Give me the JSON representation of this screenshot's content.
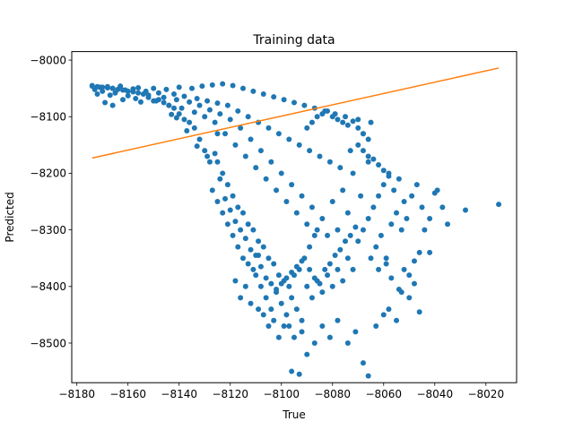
{
  "chart_data": {
    "type": "scatter",
    "title": "Training data",
    "xlabel": "True",
    "ylabel": "Predicted",
    "xlim": [
      -8182,
      -8008
    ],
    "ylim": [
      -8570,
      -7985
    ],
    "x_ticks": [
      -8180,
      -8160,
      -8140,
      -8120,
      -8100,
      -8080,
      -8060,
      -8040,
      -8020
    ],
    "y_ticks": [
      -8000,
      -8100,
      -8200,
      -8300,
      -8400,
      -8500
    ],
    "x_tick_labels": [
      "−8180",
      "−8160",
      "−8140",
      "−8120",
      "−8100",
      "−8080",
      "−8060",
      "−8040",
      "−8020"
    ],
    "y_tick_labels": [
      "−8000",
      "−8100",
      "−8200",
      "−8300",
      "−8400",
      "−8500"
    ],
    "grid": false,
    "series": [
      {
        "type": "scatter",
        "color": "#1f77b4",
        "points": [
          [
            -8174,
            -8045
          ],
          [
            -8173,
            -8052
          ],
          [
            -8172,
            -8060
          ],
          [
            -8171,
            -8048
          ],
          [
            -8170,
            -8055
          ],
          [
            -8168,
            -8047
          ],
          [
            -8167,
            -8062
          ],
          [
            -8166,
            -8050
          ],
          [
            -8165,
            -8058
          ],
          [
            -8163,
            -8046
          ],
          [
            -8162,
            -8070
          ],
          [
            -8161,
            -8053
          ],
          [
            -8160,
            -8063
          ],
          [
            -8158,
            -8051
          ],
          [
            -8157,
            -8068
          ],
          [
            -8156,
            -8049
          ],
          [
            -8155,
            -8074
          ],
          [
            -8153,
            -8055
          ],
          [
            -8152,
            -8062
          ],
          [
            -8150,
            -8050
          ],
          [
            -8149,
            -8072
          ],
          [
            -8148,
            -8058
          ],
          [
            -8146,
            -8066
          ],
          [
            -8145,
            -8052
          ],
          [
            -8144,
            -8080
          ],
          [
            -8142,
            -8060
          ],
          [
            -8141,
            -8070
          ],
          [
            -8140,
            -8048
          ],
          [
            -8139,
            -8085
          ],
          [
            -8138,
            -8064
          ],
          [
            -8136,
            -8074
          ],
          [
            -8135,
            -8050
          ],
          [
            -8134,
            -8092
          ],
          [
            -8133,
            -8068
          ],
          [
            -8132,
            -8080
          ],
          [
            -8131,
            -8046
          ],
          [
            -8130,
            -8100
          ],
          [
            -8129,
            -8072
          ],
          [
            -8128,
            -8088
          ],
          [
            -8127,
            -8044
          ],
          [
            -8126,
            -8110
          ],
          [
            -8125,
            -8076
          ],
          [
            -8124,
            -8095
          ],
          [
            -8123,
            -8042
          ],
          [
            -8122,
            -8130
          ],
          [
            -8121,
            -8080
          ],
          [
            -8120,
            -8105
          ],
          [
            -8119,
            -8045
          ],
          [
            -8118,
            -8150
          ],
          [
            -8117,
            -8090
          ],
          [
            -8116,
            -8120
          ],
          [
            -8115,
            -8050
          ],
          [
            -8114,
            -8170
          ],
          [
            -8113,
            -8100
          ],
          [
            -8112,
            -8140
          ],
          [
            -8111,
            -8055
          ],
          [
            -8110,
            -8190
          ],
          [
            -8109,
            -8110
          ],
          [
            -8108,
            -8160
          ],
          [
            -8107,
            -8060
          ],
          [
            -8106,
            -8210
          ],
          [
            -8105,
            -8120
          ],
          [
            -8104,
            -8180
          ],
          [
            -8103,
            -8065
          ],
          [
            -8102,
            -8230
          ],
          [
            -8101,
            -8130
          ],
          [
            -8100,
            -8200
          ],
          [
            -8099,
            -8070
          ],
          [
            -8098,
            -8250
          ],
          [
            -8097,
            -8140
          ],
          [
            -8096,
            -8220
          ],
          [
            -8095,
            -8075
          ],
          [
            -8094,
            -8270
          ],
          [
            -8093,
            -8150
          ],
          [
            -8092,
            -8240
          ],
          [
            -8091,
            -8080
          ],
          [
            -8090,
            -8290
          ],
          [
            -8089,
            -8160
          ],
          [
            -8088,
            -8260
          ],
          [
            -8087,
            -8085
          ],
          [
            -8086,
            -8300
          ],
          [
            -8085,
            -8170
          ],
          [
            -8084,
            -8280
          ],
          [
            -8083,
            -8090
          ],
          [
            -8082,
            -8310
          ],
          [
            -8081,
            -8180
          ],
          [
            -8080,
            -8250
          ],
          [
            -8079,
            -8095
          ],
          [
            -8078,
            -8300
          ],
          [
            -8077,
            -8190
          ],
          [
            -8076,
            -8230
          ],
          [
            -8075,
            -8100
          ],
          [
            -8074,
            -8270
          ],
          [
            -8073,
            -8160
          ],
          [
            -8072,
            -8200
          ],
          [
            -8070,
            -8105
          ],
          [
            -8069,
            -8240
          ],
          [
            -8068,
            -8130
          ],
          [
            -8066,
            -8180
          ],
          [
            -8065,
            -8110
          ],
          [
            -8125,
            -8180
          ],
          [
            -8123,
            -8200
          ],
          [
            -8121,
            -8220
          ],
          [
            -8119,
            -8240
          ],
          [
            -8117,
            -8260
          ],
          [
            -8115,
            -8270
          ],
          [
            -8113,
            -8290
          ],
          [
            -8111,
            -8300
          ],
          [
            -8109,
            -8320
          ],
          [
            -8107,
            -8330
          ],
          [
            -8105,
            -8350
          ],
          [
            -8103,
            -8360
          ],
          [
            -8101,
            -8380
          ],
          [
            -8099,
            -8390
          ],
          [
            -8097,
            -8400
          ],
          [
            -8095,
            -8380
          ],
          [
            -8093,
            -8370
          ],
          [
            -8091,
            -8350
          ],
          [
            -8089,
            -8330
          ],
          [
            -8087,
            -8310
          ],
          [
            -8110,
            -8380
          ],
          [
            -8108,
            -8400
          ],
          [
            -8106,
            -8420
          ],
          [
            -8104,
            -8440
          ],
          [
            -8102,
            -8410
          ],
          [
            -8100,
            -8430
          ],
          [
            -8098,
            -8450
          ],
          [
            -8096,
            -8420
          ],
          [
            -8094,
            -8440
          ],
          [
            -8092,
            -8460
          ],
          [
            -8090,
            -8400
          ],
          [
            -8088,
            -8420
          ],
          [
            -8086,
            -8390
          ],
          [
            -8084,
            -8410
          ],
          [
            -8082,
            -8380
          ],
          [
            -8080,
            -8400
          ],
          [
            -8078,
            -8370
          ],
          [
            -8076,
            -8390
          ],
          [
            -8074,
            -8350
          ],
          [
            -8072,
            -8370
          ],
          [
            -8115,
            -8350
          ],
          [
            -8113,
            -8360
          ],
          [
            -8111,
            -8370
          ],
          [
            -8109,
            -8345
          ],
          [
            -8117,
            -8330
          ],
          [
            -8119,
            -8310
          ],
          [
            -8121,
            -8290
          ],
          [
            -8123,
            -8270
          ],
          [
            -8125,
            -8250
          ],
          [
            -8127,
            -8230
          ],
          [
            -8070,
            -8320
          ],
          [
            -8068,
            -8300
          ],
          [
            -8066,
            -8280
          ],
          [
            -8064,
            -8260
          ],
          [
            -8062,
            -8240
          ],
          [
            -8060,
            -8220
          ],
          [
            -8058,
            -8200
          ],
          [
            -8056,
            -8230
          ],
          [
            -8054,
            -8210
          ],
          [
            -8052,
            -8250
          ],
          [
            -8063,
            -8330
          ],
          [
            -8061,
            -8310
          ],
          [
            -8059,
            -8350
          ],
          [
            -8057,
            -8290
          ],
          [
            -8055,
            -8270
          ],
          [
            -8053,
            -8300
          ],
          [
            -8051,
            -8280
          ],
          [
            -8049,
            -8240
          ],
          [
            -8047,
            -8220
          ],
          [
            -8045,
            -8260
          ],
          [
            -8097,
            -8470
          ],
          [
            -8095,
            -8490
          ],
          [
            -8092,
            -8480
          ],
          [
            -8096,
            -8550
          ],
          [
            -8093,
            -8555
          ],
          [
            -8090,
            -8520
          ],
          [
            -8087,
            -8500
          ],
          [
            -8084,
            -8470
          ],
          [
            -8081,
            -8490
          ],
          [
            -8078,
            -8460
          ],
          [
            -8074,
            -8500
          ],
          [
            -8071,
            -8480
          ],
          [
            -8068,
            -8535
          ],
          [
            -8066,
            -8558
          ],
          [
            -8063,
            -8470
          ],
          [
            -8060,
            -8450
          ],
          [
            -8058,
            -8440
          ],
          [
            -8055,
            -8460
          ],
          [
            -8053,
            -8410
          ],
          [
            -8050,
            -8420
          ],
          [
            -8105,
            -8470
          ],
          [
            -8103,
            -8460
          ],
          [
            -8101,
            -8490
          ],
          [
            -8099,
            -8470
          ],
          [
            -8107,
            -8450
          ],
          [
            -8109,
            -8440
          ],
          [
            -8112,
            -8430
          ],
          [
            -8114,
            -8400
          ],
          [
            -8116,
            -8420
          ],
          [
            -8118,
            -8390
          ],
          [
            -8048,
            -8355
          ],
          [
            -8046,
            -8340
          ],
          [
            -8050,
            -8380
          ],
          [
            -8052,
            -8370
          ],
          [
            -8044,
            -8300
          ],
          [
            -8042,
            -8280
          ],
          [
            -8040,
            -8235
          ],
          [
            -8039,
            -8230
          ],
          [
            -8037,
            -8260
          ],
          [
            -8035,
            -8290
          ],
          [
            -8028,
            -8265
          ],
          [
            -8015,
            -8255
          ],
          [
            -8046,
            -8445
          ],
          [
            -8042,
            -8340
          ],
          [
            -8048,
            -8395
          ],
          [
            -8054,
            -8405
          ],
          [
            -8057,
            -8385
          ],
          [
            -8059,
            -8360
          ],
          [
            -8062,
            -8370
          ],
          [
            -8065,
            -8350
          ],
          [
            -8125,
            -8130
          ],
          [
            -8130,
            -8160
          ],
          [
            -8128,
            -8180
          ],
          [
            -8126,
            -8165
          ],
          [
            -8132,
            -8140
          ],
          [
            -8134,
            -8120
          ],
          [
            -8136,
            -8110
          ],
          [
            -8138,
            -8105
          ],
          [
            -8140,
            -8095
          ],
          [
            -8142,
            -8085
          ],
          [
            -8144,
            -8080
          ],
          [
            -8146,
            -8075
          ],
          [
            -8148,
            -8070
          ],
          [
            -8150,
            -8072
          ],
          [
            -8152,
            -8066
          ],
          [
            -8154,
            -8060
          ],
          [
            -8156,
            -8058
          ],
          [
            -8158,
            -8056
          ],
          [
            -8160,
            -8055
          ],
          [
            -8162,
            -8053
          ],
          [
            -8164,
            -8052
          ],
          [
            -8166,
            -8050
          ],
          [
            -8168,
            -8049
          ],
          [
            -8170,
            -8048
          ],
          [
            -8172,
            -8047
          ],
          [
            -8174,
            -8046
          ],
          [
            -8169,
            -8075
          ],
          [
            -8166,
            -8080
          ],
          [
            -8143,
            -8096
          ],
          [
            -8141,
            -8102
          ],
          [
            -8137,
            -8125
          ],
          [
            -8133,
            -8152
          ],
          [
            -8129,
            -8170
          ],
          [
            -8124,
            -8210
          ],
          [
            -8122,
            -8245
          ],
          [
            -8120,
            -8265
          ],
          [
            -8118,
            -8285
          ],
          [
            -8116,
            -8300
          ],
          [
            -8114,
            -8315
          ],
          [
            -8112,
            -8335
          ],
          [
            -8110,
            -8345
          ],
          [
            -8108,
            -8365
          ],
          [
            -8106,
            -8385
          ],
          [
            -8104,
            -8395
          ],
          [
            -8102,
            -8405
          ],
          [
            -8100,
            -8395
          ],
          [
            -8098,
            -8385
          ],
          [
            -8096,
            -8375
          ],
          [
            -8094,
            -8365
          ],
          [
            -8092,
            -8355
          ],
          [
            -8089,
            -8370
          ],
          [
            -8087,
            -8385
          ],
          [
            -8085,
            -8395
          ],
          [
            -8083,
            -8370
          ],
          [
            -8081,
            -8360
          ],
          [
            -8079,
            -8345
          ],
          [
            -8077,
            -8335
          ],
          [
            -8075,
            -8320
          ],
          [
            -8073,
            -8310
          ],
          [
            -8071,
            -8295
          ],
          [
            -8090,
            -8120
          ],
          [
            -8088,
            -8110
          ],
          [
            -8086,
            -8100
          ],
          [
            -8084,
            -8095
          ],
          [
            -8082,
            -8090
          ],
          [
            -8080,
            -8100
          ],
          [
            -8078,
            -8105
          ],
          [
            -8076,
            -8110
          ],
          [
            -8074,
            -8115
          ],
          [
            -8072,
            -8108
          ],
          [
            -8070,
            -8120
          ],
          [
            -8068,
            -8130
          ],
          [
            -8066,
            -8140
          ],
          [
            -8070,
            -8150
          ],
          [
            -8068,
            -8160
          ],
          [
            -8066,
            -8170
          ],
          [
            -8064,
            -8175
          ],
          [
            -8062,
            -8185
          ],
          [
            -8060,
            -8195
          ],
          [
            -8058,
            -8205
          ]
        ]
      },
      {
        "type": "line",
        "color": "#ff7f0e",
        "points": [
          [
            -8174,
            -8173
          ],
          [
            -8015,
            -8014
          ]
        ]
      }
    ]
  }
}
